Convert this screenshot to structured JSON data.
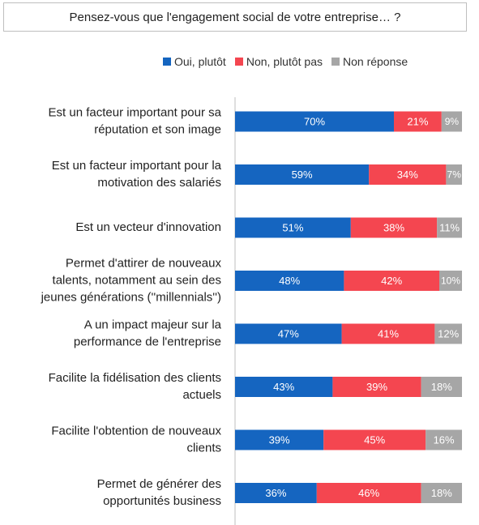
{
  "chart_data": {
    "type": "bar",
    "orientation": "horizontal",
    "stacked": true,
    "normalized_percent": true,
    "title": "Pensez-vous que l'engagement social de votre entreprise… ?",
    "categories": [
      [
        "Est un facteur important pour sa",
        "réputation et son image"
      ],
      [
        "Est un facteur important pour la",
        "motivation des salariés"
      ],
      [
        "Est un vecteur d'innovation"
      ],
      [
        "Permet d'attirer de nouveaux",
        "talents, notamment au sein des",
        "jeunes générations (''millennials'')"
      ],
      [
        "A un impact majeur sur la",
        "performance de l'entreprise"
      ],
      [
        "Facilite la fidélisation des clients",
        "actuels"
      ],
      [
        "Facilite l'obtention de nouveaux",
        "clients"
      ],
      [
        "Permet de générer des",
        "opportunités business"
      ]
    ],
    "series": [
      {
        "name": "Oui, plutôt",
        "color": "#1565c0",
        "values": [
          70,
          59,
          51,
          48,
          47,
          43,
          39,
          36
        ]
      },
      {
        "name": "Non, plutôt pas",
        "color": "#f44650",
        "values": [
          21,
          34,
          38,
          42,
          41,
          39,
          45,
          46
        ]
      },
      {
        "name": "Non réponse",
        "color": "#a6a6a6",
        "values": [
          9,
          7,
          11,
          10,
          12,
          18,
          16,
          18
        ]
      }
    ],
    "value_suffix": "%",
    "xlim": [
      0,
      100
    ],
    "legend_position": "top",
    "grid": false
  }
}
